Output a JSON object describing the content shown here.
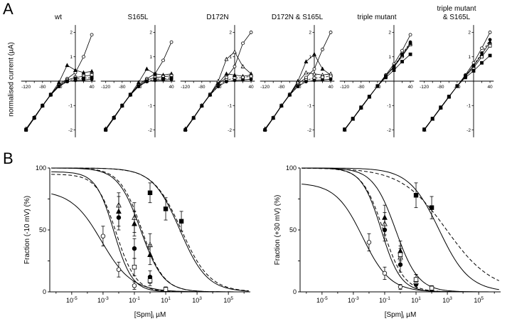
{
  "figure": {
    "panel_a_label": "A",
    "panel_b_label": "B",
    "a_ylabel": "normalised current (µA)"
  },
  "chart_data": [
    {
      "type": "iv",
      "title": "wt",
      "xlim": [
        -135,
        52
      ],
      "ylim": [
        -2.45,
        2.45
      ],
      "xticks": [
        -120,
        -80,
        -40,
        40
      ],
      "yticks": [
        -2,
        -1,
        1,
        2
      ],
      "x": [
        -120,
        -100,
        -80,
        -60,
        -40,
        -20,
        0,
        20,
        40
      ],
      "series": [
        {
          "marker": "open-circle",
          "values": [
            -2.0,
            -1.5,
            -1.0,
            -0.55,
            -0.15,
            0.1,
            0.35,
            1.0,
            1.9
          ]
        },
        {
          "marker": "filled-triangle",
          "values": [
            -1.95,
            -1.48,
            -1.0,
            -0.55,
            -0.05,
            0.65,
            0.45,
            0.35,
            0.4
          ]
        },
        {
          "marker": "open-square",
          "values": [
            -2.0,
            -1.5,
            -1.0,
            -0.55,
            -0.2,
            0.05,
            0.15,
            0.2,
            0.25
          ]
        },
        {
          "marker": "filled-square",
          "values": [
            -1.98,
            -1.5,
            -1.0,
            -0.55,
            -0.2,
            0.0,
            0.1,
            0.12,
            0.15
          ],
          "dash": true
        },
        {
          "marker": "filled-circle",
          "values": [
            -2.0,
            -1.52,
            -1.02,
            -0.57,
            -0.22,
            -0.02,
            0.03,
            0.05,
            0.08
          ]
        }
      ]
    },
    {
      "type": "iv",
      "title": "S165L",
      "xlim": [
        -135,
        52
      ],
      "ylim": [
        -2.45,
        2.45
      ],
      "xticks": [
        -120,
        -80,
        -40,
        40
      ],
      "yticks": [
        -2,
        -1,
        1,
        2
      ],
      "x": [
        -120,
        -100,
        -80,
        -60,
        -40,
        -20,
        0,
        20,
        40
      ],
      "series": [
        {
          "marker": "open-circle",
          "values": [
            -2.0,
            -1.5,
            -1.0,
            -0.55,
            -0.15,
            0.1,
            0.3,
            0.85,
            1.6
          ]
        },
        {
          "marker": "filled-triangle",
          "values": [
            -1.95,
            -1.48,
            -1.0,
            -0.55,
            -0.05,
            0.5,
            0.3,
            0.25,
            0.3
          ]
        },
        {
          "marker": "open-square",
          "values": [
            -2.0,
            -1.5,
            -1.0,
            -0.55,
            -0.2,
            0.05,
            0.15,
            0.18,
            0.22
          ]
        },
        {
          "marker": "filled-square",
          "values": [
            -1.98,
            -1.5,
            -1.0,
            -0.55,
            -0.2,
            0.0,
            0.08,
            0.1,
            0.13
          ],
          "dash": true
        },
        {
          "marker": "filled-circle",
          "values": [
            -2.0,
            -1.52,
            -1.02,
            -0.57,
            -0.22,
            -0.02,
            0.03,
            0.05,
            0.07
          ]
        }
      ]
    },
    {
      "type": "iv",
      "title": "D172N",
      "xlim": [
        -135,
        52
      ],
      "ylim": [
        -2.45,
        2.45
      ],
      "xticks": [
        -120,
        -80,
        -40,
        40
      ],
      "yticks": [
        -2,
        -1,
        1,
        2
      ],
      "x": [
        -120,
        -100,
        -80,
        -60,
        -40,
        -20,
        0,
        20,
        40
      ],
      "series": [
        {
          "marker": "open-circle",
          "values": [
            -2.0,
            -1.5,
            -1.0,
            -0.55,
            -0.12,
            0.15,
            0.6,
            1.55,
            2.0
          ]
        },
        {
          "marker": "open-triangle",
          "values": [
            -1.95,
            -1.5,
            -1.0,
            -0.55,
            0.0,
            0.9,
            1.2,
            0.6,
            0.3
          ]
        },
        {
          "marker": "filled-triangle",
          "values": [
            -1.97,
            -1.5,
            -1.0,
            -0.55,
            -0.1,
            0.3,
            0.25,
            0.2,
            0.25
          ]
        },
        {
          "marker": "open-square",
          "values": [
            -2.0,
            -1.5,
            -1.0,
            -0.55,
            -0.2,
            0.05,
            0.12,
            0.15,
            0.2
          ],
          "dash": true
        },
        {
          "marker": "filled-circle",
          "values": [
            -2.0,
            -1.52,
            -1.02,
            -0.57,
            -0.22,
            -0.02,
            0.03,
            0.05,
            0.08
          ]
        }
      ]
    },
    {
      "type": "iv",
      "title": "D172N & S165L",
      "xlim": [
        -135,
        52
      ],
      "ylim": [
        -2.45,
        2.45
      ],
      "xticks": [
        -120,
        -80,
        -40,
        40
      ],
      "yticks": [
        -2,
        -1,
        1,
        2
      ],
      "x": [
        -120,
        -100,
        -80,
        -60,
        -40,
        -20,
        0,
        20,
        40
      ],
      "series": [
        {
          "marker": "open-circle",
          "values": [
            -2.0,
            -1.5,
            -1.0,
            -0.55,
            -0.12,
            0.15,
            0.5,
            1.3,
            2.0
          ]
        },
        {
          "marker": "filled-triangle",
          "values": [
            -1.95,
            -1.5,
            -1.0,
            -0.55,
            0.0,
            0.8,
            1.1,
            0.5,
            0.25
          ]
        },
        {
          "marker": "open-triangle",
          "values": [
            -1.97,
            -1.5,
            -1.0,
            -0.55,
            -0.05,
            0.35,
            0.3,
            0.25,
            0.3
          ]
        },
        {
          "marker": "open-square",
          "values": [
            -2.0,
            -1.5,
            -1.0,
            -0.55,
            -0.2,
            0.05,
            0.12,
            0.16,
            0.2
          ],
          "dash": true
        },
        {
          "marker": "filled-circle",
          "values": [
            -2.0,
            -1.52,
            -1.02,
            -0.57,
            -0.22,
            -0.02,
            0.03,
            0.05,
            0.08
          ]
        }
      ]
    },
    {
      "type": "iv",
      "title": "triple mutant",
      "xlim": [
        -135,
        52
      ],
      "ylim": [
        -2.45,
        2.45
      ],
      "xticks": [
        -120,
        -80,
        -40,
        40
      ],
      "yticks": [
        -2,
        -1,
        1,
        2
      ],
      "x": [
        -120,
        -100,
        -80,
        -60,
        -40,
        -20,
        0,
        20,
        40
      ],
      "series": [
        {
          "marker": "open-circle",
          "values": [
            -2.0,
            -1.55,
            -1.1,
            -0.65,
            -0.2,
            0.25,
            0.7,
            1.25,
            1.9
          ]
        },
        {
          "marker": "filled-circle",
          "values": [
            -2.0,
            -1.55,
            -1.1,
            -0.65,
            -0.2,
            0.2,
            0.62,
            1.1,
            1.6
          ],
          "dash": true
        },
        {
          "marker": "open-square",
          "values": [
            -1.98,
            -1.54,
            -1.08,
            -0.64,
            -0.2,
            0.2,
            0.58,
            1.02,
            1.5
          ]
        },
        {
          "marker": "filled-triangle",
          "values": [
            -1.99,
            -1.55,
            -1.09,
            -0.64,
            -0.2,
            0.22,
            0.6,
            1.07,
            1.55
          ]
        },
        {
          "marker": "filled-square",
          "values": [
            -1.97,
            -1.53,
            -1.07,
            -0.63,
            -0.2,
            0.15,
            0.45,
            0.8,
            1.1
          ]
        }
      ]
    },
    {
      "type": "iv",
      "title": "triple mutant\n& S165L",
      "xlim": [
        -135,
        52
      ],
      "ylim": [
        -2.45,
        2.45
      ],
      "xticks": [
        -120,
        -80,
        -40,
        40
      ],
      "yticks": [
        -2,
        -1,
        1,
        2
      ],
      "x": [
        -120,
        -100,
        -80,
        -60,
        -40,
        -20,
        0,
        20,
        40
      ],
      "series": [
        {
          "marker": "open-circle",
          "values": [
            -2.0,
            -1.55,
            -1.1,
            -0.65,
            -0.2,
            0.25,
            0.75,
            1.35,
            2.0
          ]
        },
        {
          "marker": "filled-circle",
          "values": [
            -2.0,
            -1.55,
            -1.1,
            -0.65,
            -0.2,
            0.22,
            0.65,
            1.15,
            1.7
          ],
          "dash": true
        },
        {
          "marker": "open-square",
          "values": [
            -1.98,
            -1.54,
            -1.08,
            -0.64,
            -0.2,
            0.2,
            0.55,
            1.0,
            1.45
          ]
        },
        {
          "marker": "filled-triangle",
          "values": [
            -1.99,
            -1.55,
            -1.09,
            -0.64,
            -0.2,
            0.22,
            0.62,
            1.1,
            1.6
          ]
        },
        {
          "marker": "filled-square",
          "values": [
            -1.97,
            -1.53,
            -1.07,
            -0.63,
            -0.2,
            0.15,
            0.42,
            0.75,
            1.05
          ]
        }
      ]
    },
    {
      "type": "dose",
      "ylabel": "Fraction (-10 mV) (%)",
      "xlabel": "[Spm]",
      "xlabel_sub": "i",
      "xlabel_unit": " µM",
      "xtick_exponents": [
        -5,
        -3,
        -1,
        1,
        3,
        5
      ],
      "ylim": [
        0,
        100
      ],
      "yticks": [
        0,
        25,
        50,
        75,
        100
      ],
      "ytick_labeled": [
        0,
        50,
        100
      ],
      "curves": [
        {
          "style": "solid",
          "top": 82,
          "ic50": 0.0008,
          "hill": 0.45
        },
        {
          "style": "solid",
          "top": 97,
          "ic50": 0.005,
          "hill": 0.75
        },
        {
          "style": "dashed",
          "top": 95,
          "ic50": 0.007,
          "hill": 0.7
        },
        {
          "style": "solid",
          "top": 100,
          "ic50": 0.25,
          "hill": 0.6
        },
        {
          "style": "dashed",
          "top": 100,
          "ic50": 0.3,
          "hill": 0.62
        },
        {
          "style": "solid",
          "top": 100,
          "ic50": 80,
          "hill": 0.5
        },
        {
          "style": "dashed",
          "top": 100,
          "ic50": 100,
          "hill": 0.48
        }
      ],
      "points": [
        {
          "marker": "open-circle",
          "x": [
            0.001,
            0.01,
            0.1
          ],
          "y": [
            45,
            18,
            5
          ],
          "err": [
            8,
            6,
            3
          ]
        },
        {
          "marker": "filled-circle",
          "x": [
            0.01,
            0.1,
            1
          ],
          "y": [
            60,
            35,
            12
          ],
          "err": [
            10,
            8,
            5
          ]
        },
        {
          "marker": "open-triangle",
          "x": [
            0.01,
            0.1,
            1
          ],
          "y": [
            70,
            60,
            38
          ],
          "err": [
            10,
            12,
            9
          ]
        },
        {
          "marker": "filled-triangle",
          "x": [
            0.01,
            0.1,
            1
          ],
          "y": [
            65,
            55,
            30
          ],
          "err": [
            12,
            10,
            8
          ]
        },
        {
          "marker": "open-square",
          "x": [
            0.1,
            1,
            10
          ],
          "y": [
            20,
            9,
            2
          ],
          "err": [
            7,
            4,
            2
          ]
        },
        {
          "marker": "filled-square",
          "x": [
            1,
            10,
            100
          ],
          "y": [
            80,
            67,
            57
          ],
          "err": [
            8,
            9,
            8
          ]
        }
      ]
    },
    {
      "type": "dose",
      "ylabel": "Fraction (+30 mV) (%)",
      "xlabel": "[Spm]",
      "xlabel_sub": "i",
      "xlabel_unit": " µM",
      "xtick_exponents": [
        -5,
        -3,
        -1,
        1,
        3,
        5
      ],
      "ylim": [
        0,
        100
      ],
      "yticks": [
        0,
        25,
        50,
        75,
        100
      ],
      "ytick_labeled": [
        0,
        50,
        100
      ],
      "curves": [
        {
          "style": "solid",
          "top": 88,
          "ic50": 0.004,
          "hill": 0.5
        },
        {
          "style": "solid",
          "top": 100,
          "ic50": 0.06,
          "hill": 0.7
        },
        {
          "style": "dashed",
          "top": 100,
          "ic50": 0.08,
          "hill": 0.65
        },
        {
          "style": "solid",
          "top": 100,
          "ic50": 0.5,
          "hill": 0.6
        },
        {
          "style": "solid",
          "top": 100,
          "ic50": 300,
          "hill": 0.45
        },
        {
          "style": "dashed",
          "top": 100,
          "ic50": 900,
          "hill": 0.3
        }
      ],
      "points": [
        {
          "marker": "open-circle",
          "x": [
            0.01,
            0.1,
            1
          ],
          "y": [
            40,
            15,
            4
          ],
          "err": [
            7,
            5,
            2
          ]
        },
        {
          "marker": "filled-circle",
          "x": [
            0.1,
            1,
            10
          ],
          "y": [
            50,
            22,
            6
          ],
          "err": [
            9,
            6,
            3
          ]
        },
        {
          "marker": "open-triangle",
          "x": [
            0.1,
            1,
            10
          ],
          "y": [
            55,
            28,
            8
          ],
          "err": [
            9,
            7,
            3
          ]
        },
        {
          "marker": "filled-triangle",
          "x": [
            0.1,
            1,
            10
          ],
          "y": [
            60,
            33,
            10
          ],
          "err": [
            10,
            8,
            4
          ]
        },
        {
          "marker": "open-square",
          "x": [
            1,
            10,
            100
          ],
          "y": [
            30,
            10,
            3
          ],
          "err": [
            7,
            4,
            2
          ]
        },
        {
          "marker": "filled-square",
          "x": [
            10,
            100
          ],
          "y": [
            78,
            68
          ],
          "err": [
            10,
            9
          ]
        }
      ]
    }
  ]
}
